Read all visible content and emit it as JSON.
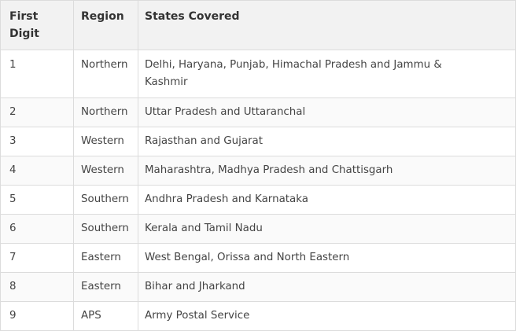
{
  "table": {
    "headers": {
      "digit": [
        "First",
        "Digit"
      ],
      "region": "Region",
      "states": "States Covered"
    },
    "rows": [
      {
        "digit": "1",
        "region": "Northern",
        "states": [
          "Delhi, Haryana, Punjab, Himachal Pradesh and Jammu &",
          "Kashmir"
        ]
      },
      {
        "digit": "2",
        "region": "Northern",
        "states": [
          "Uttar Pradesh and Uttaranchal"
        ]
      },
      {
        "digit": "3",
        "region": "Western",
        "states": [
          "Rajasthan and Gujarat"
        ]
      },
      {
        "digit": "4",
        "region": "Western",
        "states": [
          "Maharashtra, Madhya Pradesh and Chattisgarh"
        ]
      },
      {
        "digit": "5",
        "region": "Southern",
        "states": [
          "Andhra Pradesh and Karnataka"
        ]
      },
      {
        "digit": "6",
        "region": "Southern",
        "states": [
          "Kerala and Tamil Nadu"
        ]
      },
      {
        "digit": "7",
        "region": "Eastern",
        "states": [
          "West Bengal, Orissa and North Eastern"
        ]
      },
      {
        "digit": "8",
        "region": "Eastern",
        "states": [
          "Bihar and Jharkand"
        ]
      },
      {
        "digit": "9",
        "region": "APS",
        "states": [
          "Army Postal Service"
        ]
      }
    ]
  }
}
